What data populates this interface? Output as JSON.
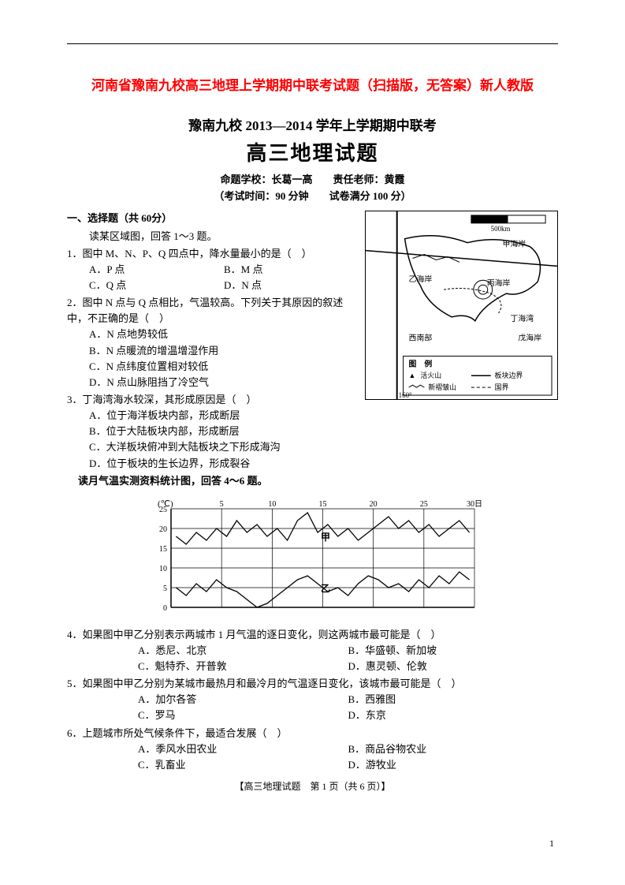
{
  "red_title": "河南省豫南九校高三地理上学期期中联考试题（扫描版，无答案）新人教版",
  "exam_header": "豫南九校 2013—2014 学年上学期期中联考",
  "exam_title": "高三地理试题",
  "school_line": "命题学校：长葛一高　　责任老师：黄霞",
  "time_line": "（考试时间：90 分钟　　试卷满分 100 分）",
  "section1": "一、选择题（共 60分）",
  "instr1": "读某区域图，回答 1～3 题。",
  "q1": {
    "stem": "1．图中 M、N、P、Q 四点中，降水量最小的是（　）",
    "A": "A．P 点",
    "B": "B．M 点",
    "C": "C．Q 点",
    "D": "D．N 点"
  },
  "q2": {
    "stem": "2．图中 N 点与 Q 点相比，气温较高。下列关于其原因的叙述中，不正确的是（　）",
    "A": "A．N 点地势较低",
    "B": "B．N 点暖流的增温增湿作用",
    "C": "C．N 点纬度位置相对较低",
    "D": "D．N 点山脉阻挡了冷空气"
  },
  "q3": {
    "stem": "3．丁海湾海水较深，其形成原因是（　）",
    "A": "A．位于海洋板块内部，形成断层",
    "B": "B．位于大陆板块内部，形成断层",
    "C": "C．大洋板块俯冲到大陆板块之下形成海沟",
    "D": "D．位于板块的生长边界，形成裂谷"
  },
  "instr2": "读月气温实测资料统计图，回答 4～6 题。",
  "q4": {
    "stem": "4．如果图中甲乙分别表示两城市 1 月气温的逐日变化，则这两城市最可能是（　）",
    "A": "A．悉尼、北京",
    "B": "B．华盛顿、新加坡",
    "C": "C．魁特乔、开普敦",
    "D": "D．惠灵顿、伦敦"
  },
  "q5": {
    "stem": "5．如果图中甲乙分别为某城市最热月和最冷月的气温逐日变化，该城市最可能是（　）",
    "A": "A．加尔各答",
    "B": "B．西雅图",
    "C": "C．罗马",
    "D": "D．东京"
  },
  "q6": {
    "stem": "6．上题城市所处气候条件下，最适合发展（　）",
    "A": "A．季风水田农业",
    "B": "B．商品谷物农业",
    "C": "C．乳畜业",
    "D": "D．游牧业"
  },
  "footer": "【高三地理试题　第 1 页（共 6 页）】",
  "page_num": "1",
  "map": {
    "scale_label": "500km",
    "labels": [
      "甲海岸",
      "乙海岸",
      "丙海岸",
      "丁海湾",
      "戊海岸"
    ],
    "legend_title": "图　例",
    "legend_items": [
      "活火山",
      "板块边界",
      "新褶皱山",
      "国界"
    ],
    "lon": "160°"
  },
  "chart": {
    "y_unit": "(℃)",
    "y_ticks": [
      0,
      5,
      10,
      15,
      20,
      25
    ],
    "x_ticks": [
      5,
      10,
      15,
      20,
      25,
      "30日"
    ],
    "labels": [
      "甲",
      "乙"
    ],
    "series_jia": [
      18,
      16,
      19,
      17,
      20,
      18,
      22,
      19,
      21,
      18,
      20,
      17,
      22,
      24,
      19,
      21,
      18,
      20,
      17,
      19,
      21,
      23,
      20,
      22,
      19,
      21,
      18,
      20,
      22,
      19
    ],
    "series_yi": [
      5,
      3,
      6,
      4,
      7,
      5,
      4,
      2,
      0,
      1,
      3,
      5,
      7,
      8,
      6,
      4,
      5,
      3,
      6,
      8,
      7,
      5,
      6,
      4,
      7,
      5,
      8,
      6,
      9,
      7
    ],
    "line_color": "#000000",
    "grid_color": "#000000",
    "background": "#ffffff"
  },
  "colors": {
    "title_red": "#ff0000",
    "text": "#000000",
    "background": "#ffffff"
  }
}
